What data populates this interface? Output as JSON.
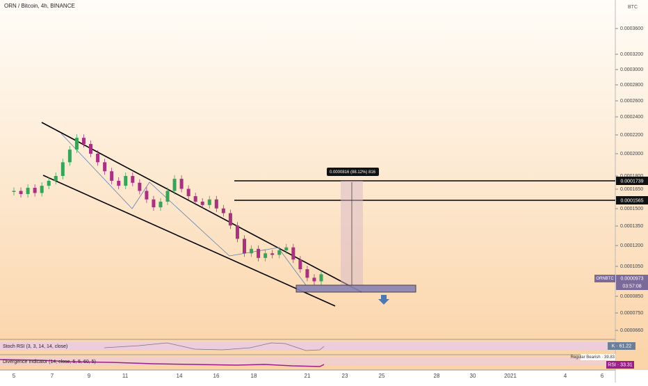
{
  "header": {
    "symbol": "ORN / Bitcoin, 4h, BINANCE",
    "currency": "BTC"
  },
  "price_axis": [
    "0.0003600",
    "0.0003200",
    "0.0003000",
    "0.0002800",
    "0.0002600",
    "0.0002400",
    "0.0002200",
    "0.0002000",
    "0.0001800",
    "0.0001650",
    "0.0001500",
    "0.0001350",
    "0.0001200",
    "0.0001050",
    "0.0000850",
    "0.0000750",
    "0.0000660"
  ],
  "levels": [
    "0.0001739",
    "0.0001565"
  ],
  "last_price": {
    "symbol": "ORNBTC",
    "price": "0.0000973",
    "countdown": "03:57:08"
  },
  "measure": "0.0000816 (88.12%) 816",
  "closes": [
    0.00016,
    0.000157,
    0.000163,
    0.000158,
    0.000165,
    0.00017,
    0.000175,
    0.00019,
    0.000205,
    0.00022,
    0.000212,
    0.0002,
    0.00019,
    0.00018,
    0.00017,
    0.000165,
    0.000175,
    0.000168,
    0.00016,
    0.000152,
    0.000145,
    0.00015,
    0.00016,
    0.000172,
    0.000162,
    0.000155,
    0.00015,
    0.000147,
    0.000152,
    0.000144,
    0.00014,
    0.00013,
    0.00012,
    0.00011,
    0.000113,
    0.000107,
    0.00011,
    0.000109,
    0.000112,
    0.000114,
    0.000106,
    0.0001,
    9.5e-05,
    9.3e-05,
    9.7e-05
  ],
  "indicators": {
    "stoch": "Stoch RSI (3, 3, 14, 14, close)",
    "stoch_value": "K · 61.22",
    "divergence": "Divergence Indicator (14, close, 5, 5, 60, 5)",
    "divergence_note": "Regular Bearish · 39.83",
    "rsi_value": "RSI · 33.31"
  },
  "time_axis": [
    "5",
    "7",
    "9",
    "11",
    "14",
    "16",
    "18",
    "21",
    "23",
    "25",
    "28",
    "30",
    "2021",
    "4",
    "6"
  ]
}
